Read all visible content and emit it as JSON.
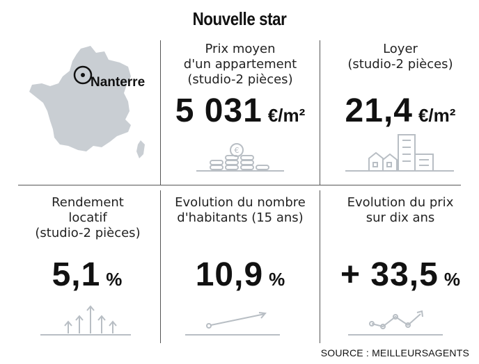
{
  "title": "Nouvelle star",
  "map": {
    "city": "Nanterre",
    "icon": "france-map-icon"
  },
  "stats": [
    {
      "label": "Prix moyen\nd'un appartement\n(studio-2 pièces)",
      "value": "5 031",
      "unit": "€/m²",
      "icon": "coins-icon"
    },
    {
      "label": "Loyer\n(studio-2 pièces)",
      "value": "21,4",
      "unit": "€/m²",
      "icon": "buildings-icon"
    },
    {
      "label": "Rendement\nlocatif\n(studio-2 pièces)",
      "value": "5,1",
      "unit": "%",
      "icon": "up-arrows-icon"
    },
    {
      "label": "Evolution du nombre\nd'habitants (15 ans)",
      "value": "10,9",
      "unit": "%",
      "icon": "trend-line-icon"
    },
    {
      "label": "Evolution du prix\nsur dix ans",
      "value": "+ 33,5",
      "unit": "%",
      "icon": "zigzag-line-icon"
    }
  ],
  "source": "SOURCE : MEILLEURSAGENTS",
  "colors": {
    "icon": "#b8bec4",
    "map": "#c9ced3",
    "rule": "#555555"
  }
}
